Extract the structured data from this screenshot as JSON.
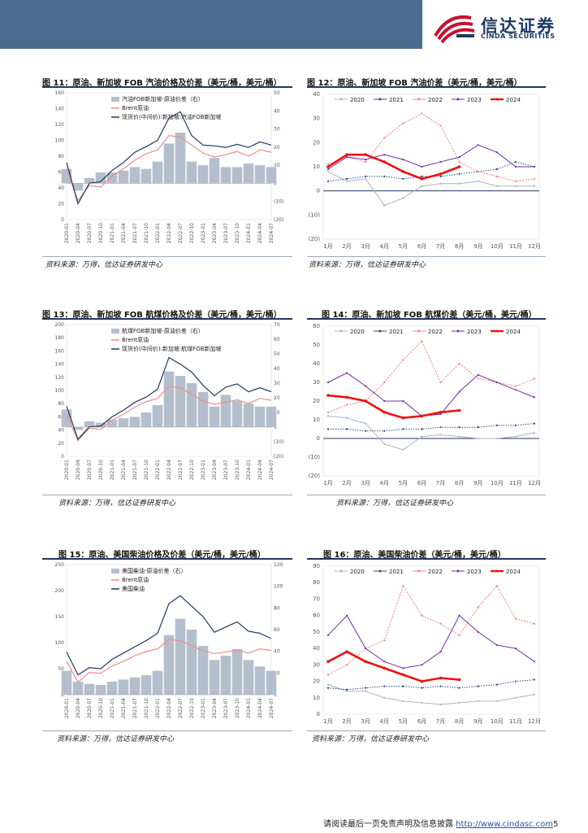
{
  "header": {
    "logo_cn": "信达证券",
    "logo_en": "CINDA SECURITIES"
  },
  "figures": [
    {
      "title": "图 11：原油、新加坡 FOB 汽油价格及价差（美元/桶，美元/桶）",
      "source": "资料来源：万得，信达证券研发中心"
    },
    {
      "title": "图 12：原油、新加坡 FOB 汽油价差（美元/桶，美元/桶）",
      "source": "资料来源：万得，信达证券研发中心"
    },
    {
      "title": "图 13：原油、新加坡 FOB 航煤价格及价差（美元/桶，美元/桶）",
      "source": "资料来源：万得，信达证券研发中心"
    },
    {
      "title": "图 14：原油、新加坡 FOB 航煤价差（美元/桶，美元/桶）",
      "source": "资料来源：万得，信达证券研发中心"
    },
    {
      "title": "图 15：原油、美国柴油价格及价差（美元/桶，美元/桶）",
      "source": "资料来源：万得，信达证券研发中心"
    },
    {
      "title": "图 16：原油、美国柴油价差（美元/桶，美元/桶）",
      "source": "资料来源：万得，信达证券研发中心"
    }
  ],
  "footer": {
    "text": "请阅读最后一页免责声明及信息披露 ",
    "link": "http://www.cindasc.com",
    "page": "5"
  },
  "chart_data": [
    {
      "type": "line",
      "title": "图 11",
      "x": [
        "2020-01",
        "2020-04",
        "2020-07",
        "2020-10",
        "2021-01",
        "2021-04",
        "2021-07",
        "2021-10",
        "2022-01",
        "2022-04",
        "2022-07",
        "2022-10",
        "2023-01",
        "2023-04",
        "2023-07",
        "2023-10",
        "2024-01",
        "2024-04",
        "2024-07"
      ],
      "ylim": [
        0,
        160
      ],
      "y2lim": [
        -20,
        50
      ],
      "y_ticks": [
        "0",
        "20",
        "40",
        "60",
        "80",
        "100",
        "120",
        "140",
        "160"
      ],
      "y2_ticks": [
        "(20)",
        "(10)",
        "0",
        "10",
        "20",
        "30",
        "40",
        "50"
      ],
      "x_ticks": [
        "2020-01",
        "2020-04",
        "2020-07",
        "2020-10",
        "2021-01",
        "2021-04",
        "2021-07",
        "2021-10",
        "2022-01",
        "2022-04",
        "2022-07",
        "2022-10",
        "2023-01",
        "2023-04",
        "2023-07",
        "2023-10",
        "2024-01",
        "2024-04",
        "2024-07"
      ],
      "legend": [
        "汽油FOB新加坡-原油价差（右）",
        "Brent原油",
        "现货价(中间价):新加坡:汽油FOB新加坡"
      ],
      "series": [
        {
          "name": "汽油FOB新加坡-原油价差（右）",
          "kind": "area",
          "axis": "right",
          "color": "#b4bfcd",
          "values": [
            8,
            -4,
            3,
            6,
            6,
            7,
            9,
            8,
            12,
            22,
            28,
            12,
            10,
            14,
            9,
            9,
            11,
            10,
            9
          ]
        },
        {
          "name": "Brent原油",
          "kind": "line",
          "axis": "left",
          "color": "#f28a8a",
          "values": [
            64,
            24,
            43,
            41,
            55,
            64,
            75,
            83,
            88,
            106,
            104,
            94,
            84,
            79,
            82,
            86,
            80,
            88,
            85
          ]
        },
        {
          "name": "现货价(中间价):新加坡:汽油FOB新加坡",
          "kind": "line",
          "axis": "left",
          "color": "#1f3864",
          "values": [
            72,
            20,
            46,
            48,
            62,
            72,
            85,
            92,
            100,
            128,
            136,
            106,
            94,
            93,
            91,
            95,
            91,
            98,
            94
          ]
        }
      ]
    },
    {
      "type": "line",
      "title": "图 12",
      "x": [
        "1月",
        "2月",
        "3月",
        "4月",
        "5月",
        "6月",
        "7月",
        "8月",
        "9月",
        "10月",
        "11月",
        "12月"
      ],
      "ylim": [
        -20,
        40
      ],
      "y_ticks": [
        "(20)",
        "(10)",
        "0",
        "10",
        "20",
        "30",
        "40"
      ],
      "legend": [
        "2020",
        "2021",
        "2022",
        "2023",
        "2024"
      ],
      "series": [
        {
          "name": "2020",
          "color": "#aab4c3",
          "values": [
            8,
            4,
            5,
            -6,
            -3,
            2,
            3,
            3,
            4,
            2,
            2,
            2
          ]
        },
        {
          "name": "2021",
          "color": "#2b4c7e",
          "values": [
            4,
            5,
            6,
            6,
            5,
            6,
            6,
            7,
            8,
            9,
            12,
            10
          ]
        },
        {
          "name": "2022",
          "color": "#f5857c",
          "values": [
            11,
            14,
            12,
            22,
            28,
            32,
            27,
            12,
            8,
            6,
            4,
            5
          ]
        },
        {
          "name": "2023",
          "color": "#7030a0",
          "values": [
            9,
            14,
            13,
            15,
            13,
            10,
            12,
            14,
            19,
            16,
            10,
            10
          ]
        },
        {
          "name": "2024",
          "color": "#ee1111",
          "values": [
            10,
            15,
            15,
            12,
            8,
            5,
            7,
            10,
            null,
            null,
            null,
            null
          ]
        }
      ]
    },
    {
      "type": "line",
      "title": "图 13",
      "x": [
        "2020-01",
        "2020-04",
        "2020-07",
        "2020-10",
        "2021-01",
        "2021-04",
        "2021-07",
        "2021-10",
        "2022-01",
        "2022-04",
        "2022-07",
        "2022-10",
        "2023-01",
        "2023-04",
        "2023-07",
        "2023-10",
        "2024-01",
        "2024-04",
        "2024-07"
      ],
      "ylim": [
        0,
        200
      ],
      "y2lim": [
        -20,
        70
      ],
      "y_ticks": [
        "0",
        "20",
        "40",
        "60",
        "80",
        "100",
        "120",
        "140",
        "160",
        "180",
        "200"
      ],
      "y2_ticks": [
        "(20)",
        "(10)",
        "0",
        "10",
        "20",
        "30",
        "40",
        "50",
        "60",
        "70"
      ],
      "x_ticks": [
        "2020-01",
        "2020-04",
        "2020-07",
        "2020-10",
        "2021-01",
        "2021-04",
        "2021-07",
        "2021-10",
        "2022-01",
        "2022-04",
        "2022-07",
        "2022-10",
        "2023-01",
        "2023-04",
        "2023-07",
        "2023-10",
        "2024-01",
        "2024-04",
        "2024-07"
      ],
      "legend": [
        "航煤FOB新加坡-原油价差（右）",
        "Brent原油",
        "现货价(中间价):新加坡:航煤FOB新加坡"
      ],
      "series": [
        {
          "name": "航煤FOB新加坡-原油价差（右）",
          "kind": "area",
          "axis": "right",
          "color": "#b4bfcd",
          "values": [
            12,
            -2,
            4,
            3,
            5,
            6,
            7,
            10,
            15,
            38,
            35,
            30,
            24,
            14,
            22,
            18,
            16,
            14,
            14
          ]
        },
        {
          "name": "Brent原油",
          "kind": "line",
          "axis": "left",
          "color": "#f28a8a",
          "values": [
            64,
            24,
            43,
            41,
            55,
            64,
            75,
            83,
            88,
            106,
            104,
            94,
            84,
            79,
            82,
            86,
            80,
            88,
            85
          ]
        },
        {
          "name": "现货价(中间价):新加坡:航煤FOB新加坡",
          "kind": "line",
          "axis": "left",
          "color": "#1f3864",
          "values": [
            76,
            26,
            45,
            46,
            60,
            70,
            82,
            90,
            102,
            150,
            140,
            128,
            108,
            92,
            105,
            110,
            98,
            104,
            98
          ]
        }
      ]
    },
    {
      "type": "line",
      "title": "图 14",
      "x": [
        "1月",
        "2月",
        "3月",
        "4月",
        "5月",
        "6月",
        "7月",
        "8月",
        "9月",
        "10月",
        "11月",
        "12月"
      ],
      "ylim": [
        -20,
        60
      ],
      "y_ticks": [
        "(20)",
        "(10)",
        "0",
        "10",
        "20",
        "30",
        "40",
        "50",
        "60"
      ],
      "legend": [
        "2020",
        "2021",
        "2022",
        "2023",
        "2024"
      ],
      "series": [
        {
          "name": "2020",
          "color": "#aab4c3",
          "values": [
            12,
            11,
            8,
            -3,
            -6,
            1,
            2,
            1,
            0,
            0,
            1,
            3
          ]
        },
        {
          "name": "2021",
          "color": "#2b4c7e",
          "values": [
            5,
            5,
            4,
            4,
            5,
            5,
            6,
            6,
            6,
            7,
            7,
            8
          ]
        },
        {
          "name": "2022",
          "color": "#f5857c",
          "values": [
            14,
            18,
            20,
            30,
            42,
            52,
            30,
            40,
            32,
            30,
            28,
            32
          ]
        },
        {
          "name": "2023",
          "color": "#7030a0",
          "values": [
            30,
            35,
            28,
            20,
            20,
            12,
            13,
            25,
            34,
            30,
            26,
            22
          ]
        },
        {
          "name": "2024",
          "color": "#ee1111",
          "values": [
            23,
            22,
            20,
            14,
            11,
            12,
            14,
            15,
            null,
            null,
            null,
            null
          ]
        }
      ]
    },
    {
      "type": "line",
      "title": "图 15",
      "x": [
        "2020-01",
        "2020-04",
        "2020-07",
        "2020-10",
        "2021-01",
        "2021-04",
        "2021-07",
        "2021-10",
        "2022-01",
        "2022-04",
        "2022-07",
        "2022-10",
        "2023-01",
        "2023-04",
        "2023-07",
        "2023-10",
        "2024-01",
        "2024-04",
        "2024-07"
      ],
      "ylim": [
        0,
        250
      ],
      "y2lim": [
        0,
        120
      ],
      "y_ticks": [
        "0",
        "50",
        "100",
        "150",
        "200",
        "250"
      ],
      "y2_ticks": [
        "0",
        "20",
        "40",
        "60",
        "80",
        "100",
        "120"
      ],
      "x_ticks": [
        "2020-01",
        "2020-04",
        "2020-07",
        "2020-10",
        "2021-01",
        "2021-04",
        "2021-07",
        "2021-10",
        "2022-01",
        "2022-04",
        "2022-07",
        "2022-10",
        "2023-01",
        "2023-04",
        "2023-07",
        "2023-10",
        "2024-01",
        "2024-04",
        "2024-07"
      ],
      "legend": [
        "美国柴油-原油价差（右）",
        "Brent原油",
        "美国柴油"
      ],
      "series": [
        {
          "name": "美国柴油-原油价差（右）",
          "kind": "area",
          "axis": "right",
          "color": "#b4bfcd",
          "values": [
            22,
            12,
            10,
            9,
            12,
            14,
            16,
            18,
            22,
            55,
            70,
            60,
            45,
            32,
            36,
            42,
            32,
            26,
            22
          ]
        },
        {
          "name": "Brent原油",
          "kind": "line",
          "axis": "left",
          "color": "#f28a8a",
          "values": [
            64,
            24,
            43,
            41,
            55,
            64,
            75,
            83,
            88,
            106,
            104,
            94,
            84,
            79,
            82,
            86,
            80,
            88,
            85
          ]
        },
        {
          "name": "美国柴油",
          "kind": "line",
          "axis": "left",
          "color": "#1f3864",
          "values": [
            82,
            38,
            52,
            50,
            68,
            80,
            92,
            104,
            118,
            175,
            190,
            170,
            150,
            120,
            130,
            140,
            122,
            118,
            108
          ]
        }
      ]
    },
    {
      "type": "line",
      "title": "图 16",
      "x": [
        "1月",
        "2月",
        "3月",
        "4月",
        "5月",
        "6月",
        "7月",
        "8月",
        "9月",
        "10月",
        "11月",
        "12月"
      ],
      "ylim": [
        0,
        90
      ],
      "y_ticks": [
        "0",
        "10",
        "20",
        "30",
        "40",
        "50",
        "60",
        "70",
        "80",
        "90"
      ],
      "legend": [
        "2020",
        "2021",
        "2022",
        "2023",
        "2024"
      ],
      "series": [
        {
          "name": "2020",
          "color": "#aab4c3",
          "values": [
            18,
            14,
            14,
            10,
            8,
            7,
            6,
            7,
            8,
            8,
            10,
            12
          ]
        },
        {
          "name": "2021",
          "color": "#2b4c7e",
          "values": [
            16,
            15,
            16,
            17,
            17,
            16,
            17,
            16,
            17,
            18,
            20,
            21
          ]
        },
        {
          "name": "2022",
          "color": "#f5857c",
          "values": [
            24,
            30,
            40,
            45,
            78,
            60,
            55,
            48,
            65,
            78,
            58,
            55
          ]
        },
        {
          "name": "2023",
          "color": "#7030a0",
          "values": [
            48,
            60,
            40,
            32,
            28,
            30,
            38,
            60,
            50,
            42,
            40,
            32
          ]
        },
        {
          "name": "2024",
          "color": "#ee1111",
          "values": [
            32,
            38,
            32,
            28,
            24,
            20,
            22,
            21,
            null,
            null,
            null,
            null
          ]
        }
      ]
    }
  ]
}
